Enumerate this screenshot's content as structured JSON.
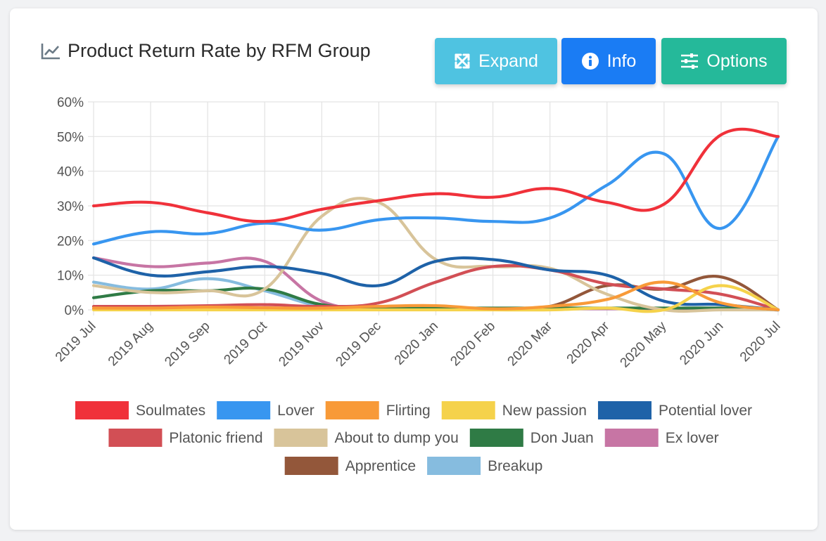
{
  "header": {
    "title": "Product Return Rate by RFM Group",
    "title_icon": "line-chart-icon"
  },
  "toolbar": {
    "expand_label": "Expand",
    "expand_icon": "expand-arrows-icon",
    "info_label": "Info",
    "info_icon": "info-circle-icon",
    "options_label": "Options",
    "options_icon": "sliders-icon",
    "colors": {
      "expand": "#4fc3e1",
      "info": "#1a7cf4",
      "options": "#25b99a"
    }
  },
  "chart_data": {
    "type": "line",
    "title": "Product Return Rate by RFM Group",
    "xlabel": "",
    "ylabel": "",
    "ylim": [
      0,
      60
    ],
    "y_ticks": [
      "0%",
      "10%",
      "20%",
      "30%",
      "40%",
      "50%",
      "60%"
    ],
    "grid": true,
    "legend_position": "bottom",
    "categories": [
      "2019 Jul",
      "2019 Aug",
      "2019 Sep",
      "2019 Oct",
      "2019 Nov",
      "2019 Dec",
      "2020 Jan",
      "2020 Feb",
      "2020 Mar",
      "2020 Apr",
      "2020 May",
      "2020 Jun",
      "2020 Jul"
    ],
    "series": [
      {
        "name": "Soulmates",
        "color": "#f0313a",
        "values": [
          30,
          31,
          28,
          25.5,
          29,
          31.5,
          33.5,
          32.5,
          35,
          31,
          30.5,
          50.5,
          50
        ]
      },
      {
        "name": "Lover",
        "color": "#3896f0",
        "values": [
          19,
          22.5,
          22,
          25,
          23,
          26,
          26.5,
          25.5,
          26.5,
          36,
          45,
          23.5,
          50
        ]
      },
      {
        "name": "Flirting",
        "color": "#f89a38",
        "values": [
          0.5,
          0.5,
          0.8,
          0.6,
          0.5,
          1,
          1.2,
          0.3,
          1,
          3,
          8,
          2,
          0
        ]
      },
      {
        "name": "New passion",
        "color": "#f5d24b",
        "values": [
          0,
          0,
          0,
          0,
          0,
          0,
          0,
          0,
          0,
          0.5,
          0,
          7,
          0
        ]
      },
      {
        "name": "Potential lover",
        "color": "#1e62a8",
        "values": [
          15,
          10,
          11,
          12.5,
          10.5,
          7,
          14,
          14.5,
          11.5,
          10,
          2.5,
          1.5,
          0
        ]
      },
      {
        "name": "Platonic friend",
        "color": "#d24f55",
        "values": [
          1,
          1,
          1.2,
          1.5,
          1,
          2,
          8,
          12.5,
          11.5,
          7.5,
          6,
          4.5,
          0
        ]
      },
      {
        "name": "About to dump you",
        "color": "#d8c49a",
        "values": [
          7,
          5,
          5.5,
          6,
          27,
          31,
          14.5,
          12.5,
          12,
          4.5,
          0,
          0,
          0
        ]
      },
      {
        "name": "Don Juan",
        "color": "#2f7b45",
        "values": [
          3.5,
          5.5,
          5.5,
          6,
          1.5,
          0.5,
          0.5,
          0.5,
          0.5,
          0.5,
          0.5,
          0.5,
          0
        ]
      },
      {
        "name": "Ex lover",
        "color": "#c775a4",
        "values": [
          15,
          12.5,
          13.5,
          14,
          2.5,
          0.3,
          0.3,
          0.3,
          0.3,
          0.3,
          0.3,
          0.3,
          0
        ]
      },
      {
        "name": "Apprentice",
        "color": "#93573a",
        "values": [
          0.3,
          0.3,
          0.3,
          0.3,
          0.3,
          0.3,
          0.3,
          0.3,
          1,
          7,
          6,
          9.5,
          0
        ]
      },
      {
        "name": "Breakup",
        "color": "#86bcdf",
        "values": [
          8,
          6,
          9,
          5.5,
          1,
          0.3,
          0.3,
          0.3,
          0.3,
          0.3,
          0.3,
          0.3,
          0
        ]
      }
    ]
  }
}
